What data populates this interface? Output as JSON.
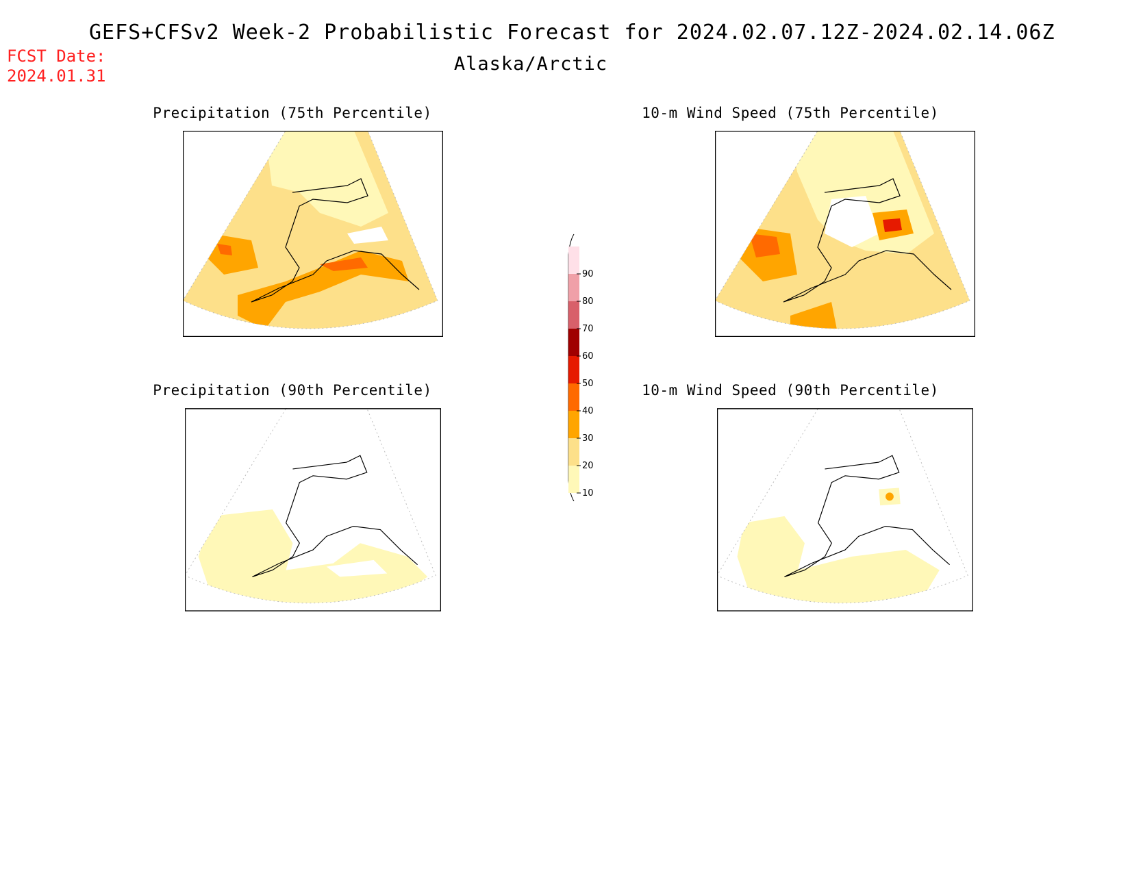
{
  "header": {
    "title": "GEFS+CFSv2 Week-2 Probabilistic Forecast for 2024.02.07.12Z-2024.02.14.06Z",
    "region": "Alaska/Arctic",
    "fcst_label": "FCST Date:",
    "fcst_date": "2024.01.31"
  },
  "panels": {
    "precip75": {
      "title": "Precipitation (75th Percentile)"
    },
    "wind75": {
      "title": "10-m Wind Speed (75th Percentile)"
    },
    "precip90": {
      "title": "Precipitation (90th Percentile)"
    },
    "wind90": {
      "title": "10-m Wind Speed (90th Percentile)"
    }
  },
  "colorbar": {
    "ticks": [
      "10",
      "20",
      "30",
      "40",
      "50",
      "60",
      "70",
      "80",
      "90"
    ],
    "colors": {
      "10-20": "#fff8b8",
      "20-30": "#fde08a",
      "30-40": "#ffa500",
      "40-50": "#ff6a00",
      "50-60": "#e61a00",
      "60-70": "#a00000",
      "70-80": "#d8606a",
      "80-90": "#f0a0a8",
      "90+": "#ffe0e8"
    }
  }
}
